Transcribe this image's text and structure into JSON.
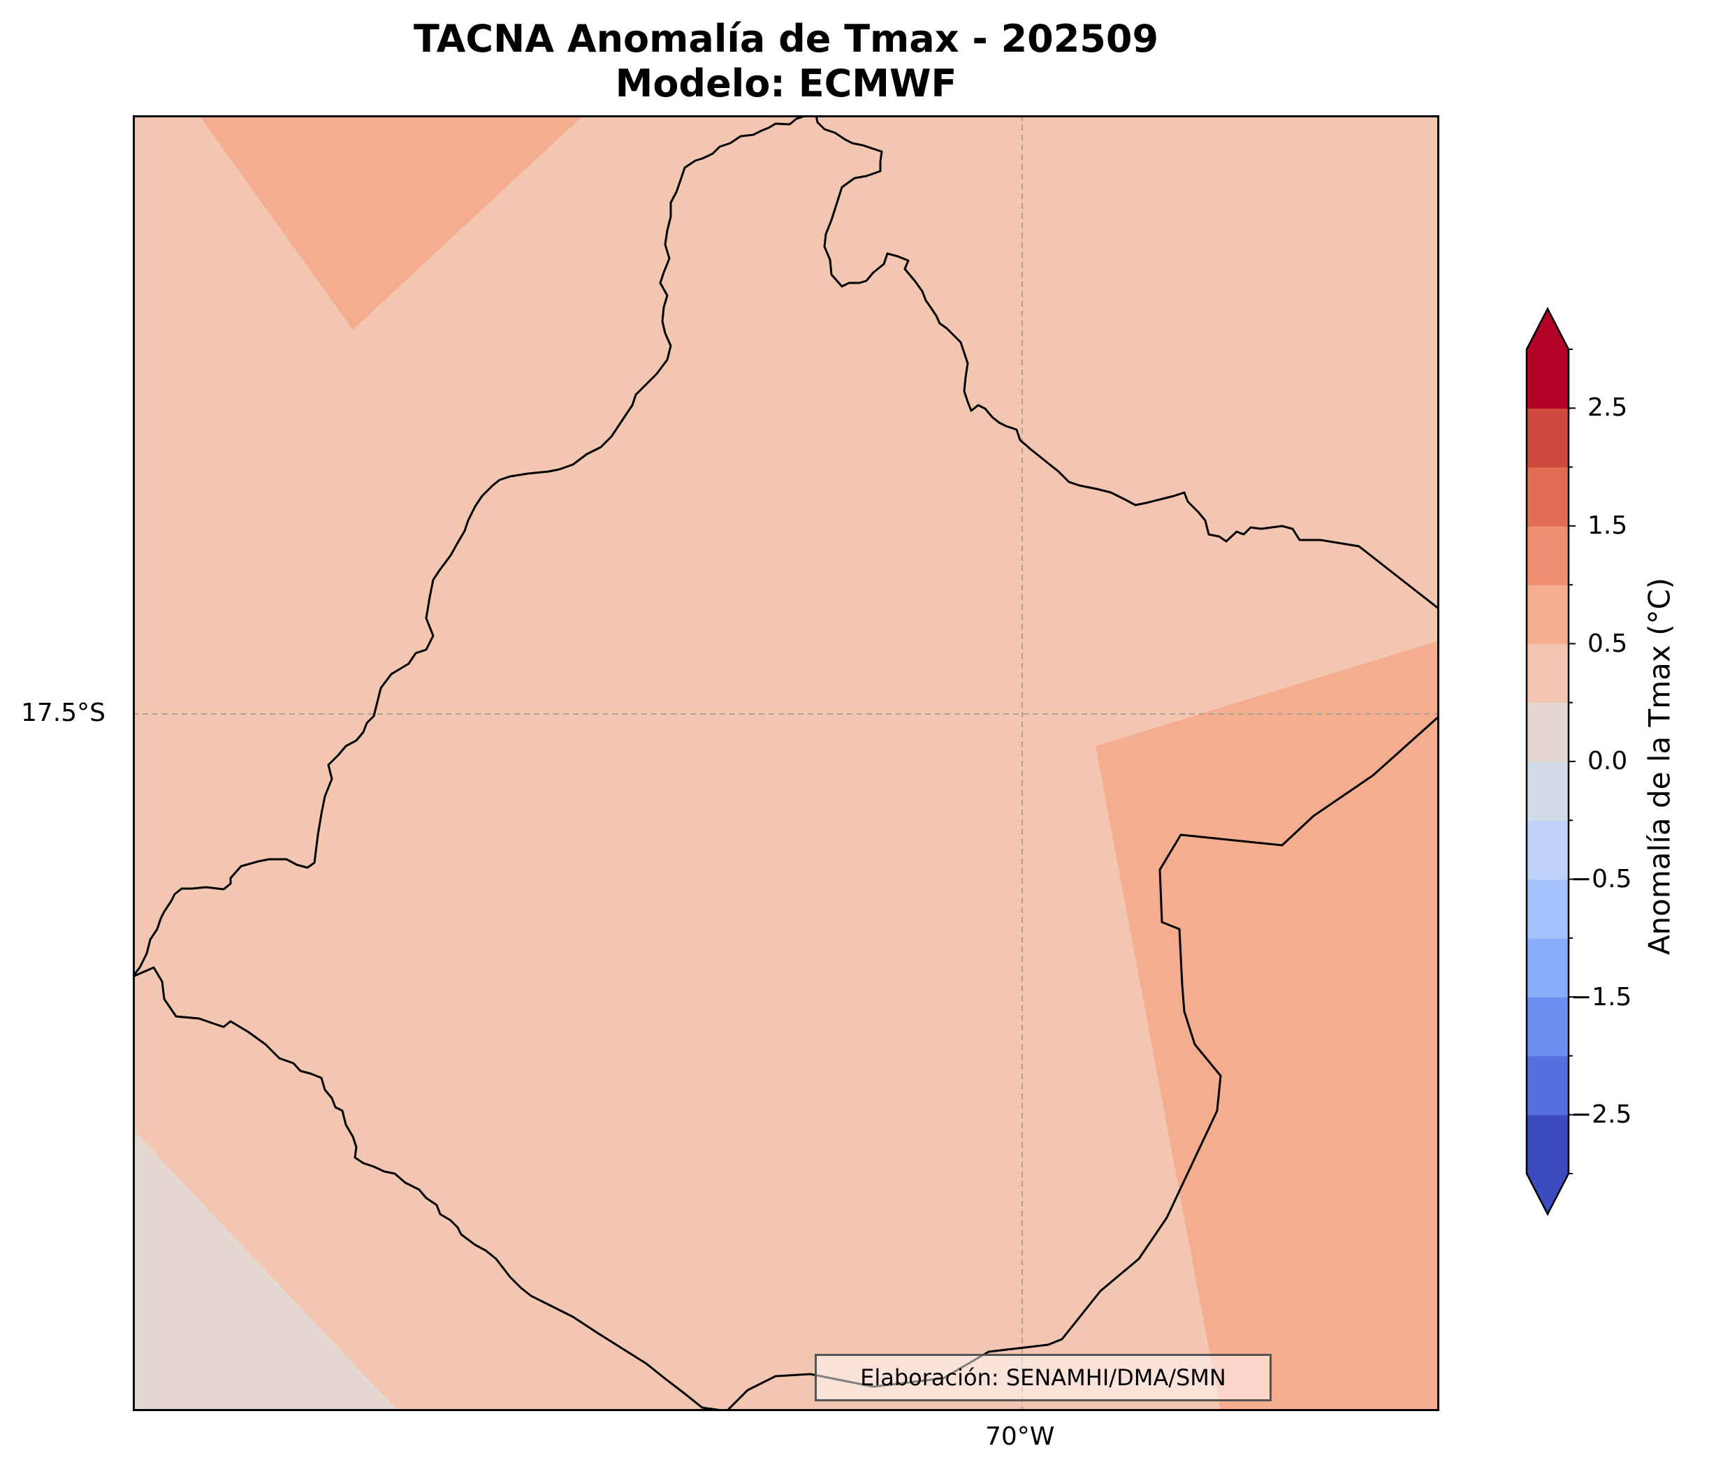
{
  "title": {
    "line1": "TACNA Anomalía de Tmax - 202509",
    "line2": "Modelo: ECMWF"
  },
  "credit": "Elaboración: SENAMHI/DMA/SMN",
  "axes": {
    "lat_tick": "17.5°S",
    "lon_tick": "70°W"
  },
  "colorbar": {
    "label": "Anomalía de la Tmax (°C)",
    "tick_labels": [
      "2.5",
      "1.5",
      "0.5",
      "0.0",
      "−0.5",
      "−1.5",
      "−2.5"
    ],
    "levels": [
      -3.0,
      -2.5,
      -2.0,
      -1.5,
      -1.0,
      -0.5,
      -0.25,
      0.0,
      0.25,
      0.5,
      1.0,
      1.5,
      2.0,
      2.5,
      3.0
    ],
    "colors": [
      "#3b4cc0",
      "#5470de",
      "#6c8ef0",
      "#88abfb",
      "#a4c2fe",
      "#bdd2f6",
      "#d2dbe8",
      "#e5d8d1",
      "#f2c6b1",
      "#f5ad90",
      "#ef8f72",
      "#e36c55",
      "#cf4a3e",
      "#b40426"
    ],
    "extend": "both"
  },
  "map": {
    "background_color": "#f2c6b1",
    "zones": [
      {
        "level": "0.5 to 1.0",
        "color": "#f5ad90"
      },
      {
        "level": "0.5 to 1.0",
        "color": "#f5ad90"
      },
      {
        "level": "0.0 to 0.25",
        "color": "#e5d8d1"
      }
    ],
    "gridline_color": "#b0a098"
  }
}
